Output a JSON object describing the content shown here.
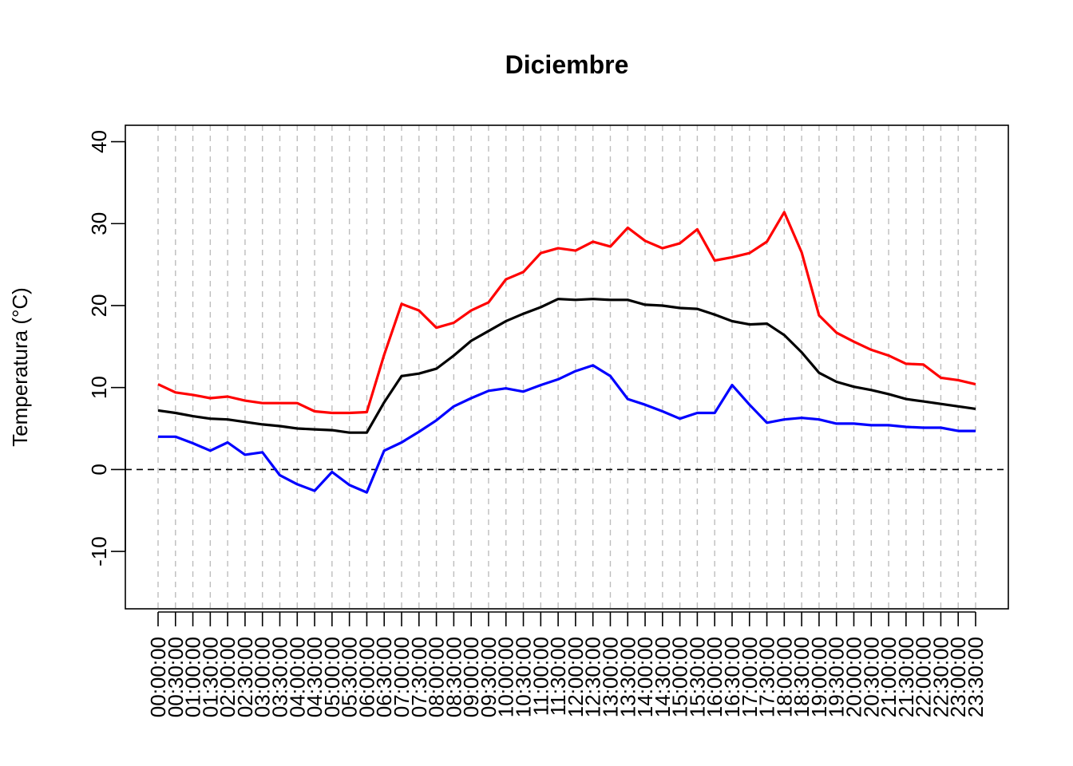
{
  "chart_data": {
    "type": "line",
    "title": "Diciembre",
    "xlabel": "",
    "ylabel": "Temperatura (°C)",
    "ylim": [
      -17,
      42
    ],
    "yticks": [
      -10,
      0,
      10,
      20,
      30,
      40
    ],
    "grid": "vertical dashed at each time step",
    "reference_line": 0,
    "legend": "none",
    "x": [
      "00:00:00",
      "00:30:00",
      "01:00:00",
      "01:30:00",
      "02:00:00",
      "02:30:00",
      "03:00:00",
      "03:30:00",
      "04:00:00",
      "04:30:00",
      "05:00:00",
      "05:30:00",
      "06:00:00",
      "06:30:00",
      "07:00:00",
      "07:30:00",
      "08:00:00",
      "08:30:00",
      "09:00:00",
      "09:30:00",
      "10:00:00",
      "10:30:00",
      "11:00:00",
      "11:30:00",
      "12:00:00",
      "12:30:00",
      "13:00:00",
      "13:30:00",
      "14:00:00",
      "14:30:00",
      "15:00:00",
      "15:30:00",
      "16:00:00",
      "16:30:00",
      "17:00:00",
      "17:30:00",
      "18:00:00",
      "18:30:00",
      "19:00:00",
      "19:30:00",
      "20:00:00",
      "20:30:00",
      "21:00:00",
      "21:30:00",
      "22:00:00",
      "22:30:00",
      "23:00:00",
      "23:30:00"
    ],
    "series": [
      {
        "color": "#ff0000",
        "values": [
          10.4,
          9.4,
          9.1,
          8.7,
          8.9,
          8.4,
          8.1,
          8.1,
          8.1,
          7.1,
          6.9,
          6.9,
          7.0,
          14.0,
          20.2,
          19.4,
          17.3,
          17.9,
          19.4,
          20.4,
          23.2,
          24.1,
          26.4,
          27.0,
          26.7,
          27.8,
          27.2,
          29.5,
          27.9,
          27.0,
          27.6,
          29.3,
          25.5,
          25.9,
          26.4,
          27.8,
          31.4,
          26.5,
          18.8,
          16.7,
          15.6,
          14.6,
          13.9,
          12.9,
          12.8,
          11.2,
          10.9,
          10.4
        ]
      },
      {
        "color": "#000000",
        "values": [
          7.2,
          6.9,
          6.5,
          6.2,
          6.1,
          5.8,
          5.5,
          5.3,
          5.0,
          4.9,
          4.8,
          4.5,
          4.5,
          8.2,
          11.4,
          11.7,
          12.3,
          13.9,
          15.7,
          16.9,
          18.1,
          19.0,
          19.8,
          20.8,
          20.7,
          20.8,
          20.7,
          20.7,
          20.1,
          20.0,
          19.7,
          19.6,
          18.9,
          18.1,
          17.7,
          17.8,
          16.4,
          14.3,
          11.8,
          10.7,
          10.1,
          9.7,
          9.2,
          8.6,
          8.3,
          8.0,
          7.7,
          7.4
        ]
      },
      {
        "color": "#0000ff",
        "values": [
          4.0,
          4.0,
          3.2,
          2.3,
          3.3,
          1.8,
          2.1,
          -0.7,
          -1.8,
          -2.6,
          -0.3,
          -1.9,
          -2.8,
          2.3,
          3.3,
          4.6,
          6.0,
          7.7,
          8.7,
          9.6,
          9.9,
          9.5,
          10.3,
          11.0,
          12.0,
          12.7,
          11.4,
          8.6,
          7.9,
          7.1,
          6.2,
          6.9,
          6.9,
          10.3,
          7.9,
          5.7,
          6.1,
          6.3,
          6.1,
          5.6,
          5.6,
          5.4,
          5.4,
          5.2,
          5.1,
          5.1,
          4.7,
          4.7
        ]
      }
    ]
  }
}
